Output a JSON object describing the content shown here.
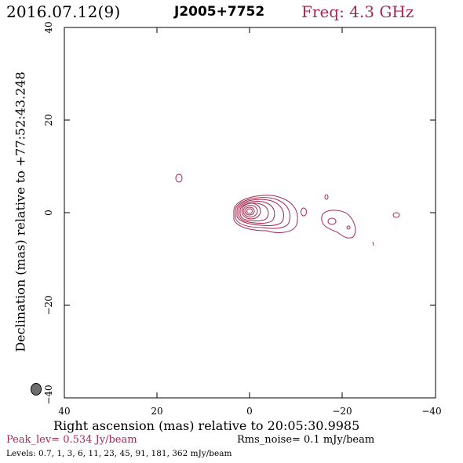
{
  "header": {
    "date": "2016.07.12(9)",
    "source": "J2005+7752",
    "frequency": "Freq: 4.3 GHz"
  },
  "axes": {
    "xlabel": "Right ascension (mas) relative to 20:05:30.9985",
    "ylabel": "Declination (mas) relative to +77:52:43.248",
    "x_ticks": [
      "40",
      "20",
      "0",
      "−20",
      "−40"
    ],
    "y_ticks": [
      "40",
      "20",
      "0",
      "−20",
      "−40"
    ]
  },
  "footer": {
    "peak": "Peak_lev=  0.534 Jy/beam",
    "rms": "Rms_noise=  0.1 mJy/beam",
    "levels": "Levels: 0.7,   1,   3,   6,  11,  23,  45,  91, 181, 362 mJy/beam"
  },
  "colors": {
    "contour": "#a52a50",
    "beam_fill": "#6e6e6e"
  }
}
